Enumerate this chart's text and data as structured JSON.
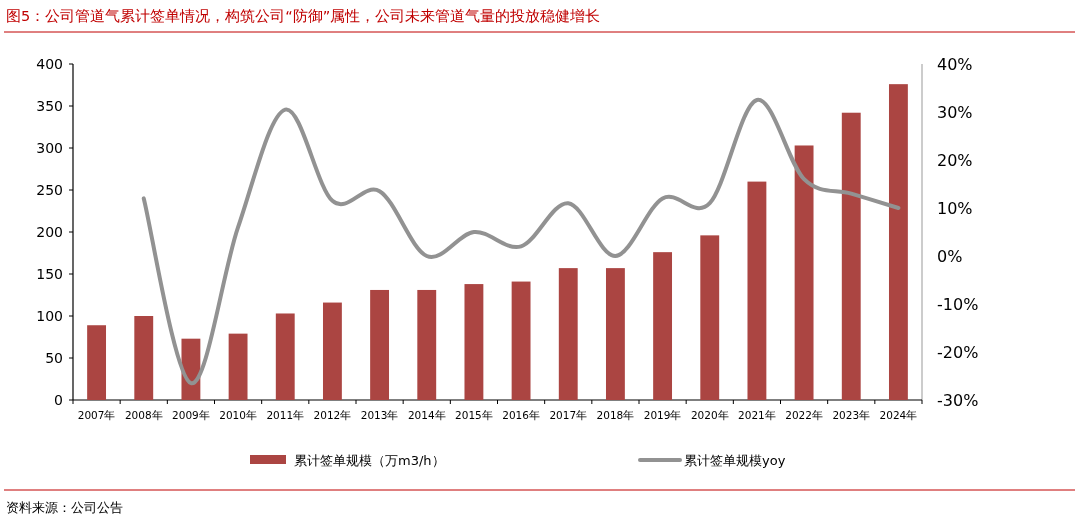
{
  "chart_data": {
    "type": "bar",
    "title": "图5：公司管道气累计签单情况，构筑公司“防御”属性，公司未来管道气量的投放稳健增长",
    "categories": [
      "2007年",
      "2008年",
      "2009年",
      "2010年",
      "2011年",
      "2012年",
      "2013年",
      "2014年",
      "2015年",
      "2016年",
      "2017年",
      "2018年",
      "2019年",
      "2020年",
      "2021年",
      "2022年",
      "2023年",
      "2024年"
    ],
    "series": [
      {
        "name": "累计签单规模（万m3/h）",
        "color": "#ab4542",
        "values": [
          89,
          100,
          73,
          79,
          103,
          116,
          131,
          131,
          138,
          141,
          157,
          157,
          176,
          196,
          260,
          303,
          342,
          376
        ]
      },
      {
        "name": "累计签单规模yoy",
        "type": "line",
        "axis": "y2",
        "color": "#929292",
        "values": [
          null,
          12,
          -26.5,
          6,
          30.5,
          11.5,
          13.5,
          0,
          5,
          2,
          11,
          0,
          12,
          11,
          32.5,
          16,
          13,
          10
        ]
      }
    ],
    "ylim": [
      0,
      400
    ],
    "yticks": [
      0,
      50,
      100,
      150,
      200,
      250,
      300,
      350,
      400
    ],
    "y2lim": [
      -30,
      40
    ],
    "y2ticks": [
      {
        "value": -30,
        "label": "-30%"
      },
      {
        "value": -20,
        "label": "-20%"
      },
      {
        "value": -10,
        "label": "-10%"
      },
      {
        "value": 0,
        "label": "0%"
      },
      {
        "value": 10,
        "label": "10%"
      },
      {
        "value": 20,
        "label": "20%"
      },
      {
        "value": 30,
        "label": "30%"
      },
      {
        "value": 40,
        "label": "40%"
      }
    ],
    "legend": "bottom",
    "annotations": [
      "资料来源：公司公告"
    ]
  }
}
